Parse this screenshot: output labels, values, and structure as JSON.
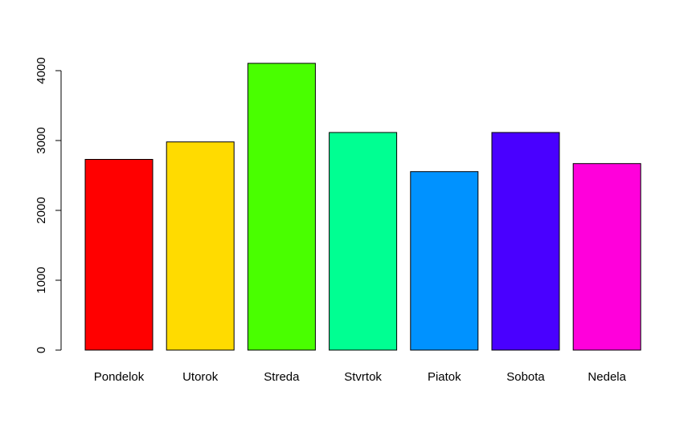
{
  "chart_data": {
    "type": "bar",
    "title": "",
    "xlabel": "",
    "ylabel": "",
    "categories": [
      "Pondelok",
      "Utorok",
      "Streda",
      "Stvrtok",
      "Piatok",
      "Sobota",
      "Nedela"
    ],
    "values": [
      2730,
      2980,
      4105,
      3115,
      2555,
      3115,
      2670
    ],
    "colors": [
      "#FF0000",
      "#FFDB00",
      "#49FF00",
      "#00FF92",
      "#0092FF",
      "#4900FF",
      "#FF00DB"
    ],
    "yticks": [
      0,
      1000,
      2000,
      3000,
      4000
    ],
    "ytick_labels": [
      "0",
      "1000",
      "2000",
      "3000",
      "4000"
    ],
    "ylim": [
      0,
      4105
    ],
    "grid": false,
    "legend": "none"
  }
}
